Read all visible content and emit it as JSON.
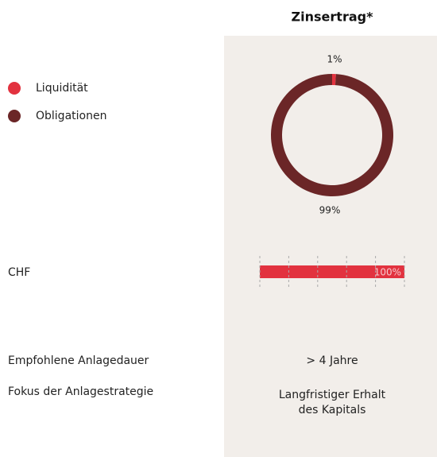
{
  "column": {
    "title": "Zinsertrag*"
  },
  "allocation": {
    "type": "pie",
    "categories": [
      "Liquidität",
      "Obligationen"
    ],
    "colors": [
      "#e2323f",
      "#6b2627"
    ],
    "values": [
      1,
      99
    ],
    "value_labels": [
      "1%",
      "99%"
    ]
  },
  "currency": {
    "type": "bar",
    "categories": [
      "CHF"
    ],
    "values": [
      100
    ],
    "value_labels": [
      "100%"
    ],
    "color": "#e2323f",
    "xlim": [
      0,
      100
    ],
    "xticks": [
      0,
      20,
      40,
      60,
      80,
      100
    ],
    "grid": true
  },
  "details": {
    "rows": [
      {
        "label": "Empfohlene Anlagedauer",
        "value": [
          "> 4 Jahre"
        ]
      },
      {
        "label": "Fokus der Anlagestrategie",
        "value": [
          "Langfristiger Erhalt",
          "des Kapitals"
        ]
      }
    ]
  }
}
